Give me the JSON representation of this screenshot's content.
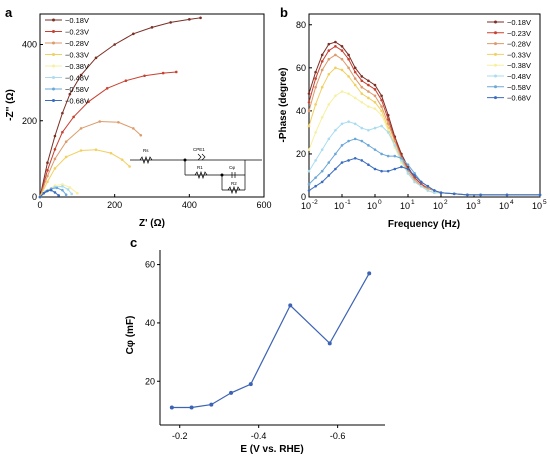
{
  "panel_labels": {
    "a": "a",
    "b": "b",
    "c": "c"
  },
  "colors": [
    "#7a2e24",
    "#c84030",
    "#dd9a6a",
    "#f2d060",
    "#f6f0a0",
    "#aadcf0",
    "#6aa8d8",
    "#3a6cc0",
    "#1a3a7a"
  ],
  "chart_data": [
    {
      "type": "scatter",
      "xlabel": "Z' (Ω)",
      "ylabel": "-Z'' (Ω)",
      "xlim": [
        0,
        600
      ],
      "ylim": [
        0,
        480
      ],
      "xticks": [
        "0",
        "200",
        "400",
        "600"
      ],
      "yticks": [
        "0",
        "200",
        "400"
      ],
      "legend_position": "top-left",
      "series": [
        {
          "name": "−0.18V",
          "x": [
            0,
            20,
            40,
            60,
            80,
            110,
            150,
            200,
            250,
            300,
            350,
            400,
            430
          ],
          "y": [
            0,
            90,
            160,
            220,
            270,
            320,
            365,
            400,
            428,
            445,
            458,
            466,
            470
          ]
        },
        {
          "name": "−0.23V",
          "x": [
            0,
            20,
            40,
            60,
            90,
            130,
            180,
            230,
            280,
            330,
            365
          ],
          "y": [
            0,
            70,
            125,
            170,
            210,
            250,
            285,
            305,
            318,
            325,
            328
          ]
        },
        {
          "name": "−0.28V",
          "x": [
            0,
            20,
            40,
            70,
            110,
            160,
            210,
            250,
            270
          ],
          "y": [
            0,
            55,
            100,
            145,
            180,
            198,
            196,
            180,
            162
          ]
        },
        {
          "name": "−0.33V",
          "x": [
            0,
            20,
            40,
            70,
            110,
            150,
            190,
            220,
            240
          ],
          "y": [
            0,
            40,
            75,
            105,
            122,
            124,
            115,
            98,
            80
          ]
        },
        {
          "name": "−0.38V",
          "x": [
            0,
            20,
            40,
            60,
            80,
            100
          ],
          "y": [
            0,
            18,
            30,
            33,
            25,
            10
          ]
        },
        {
          "name": "−0.48V",
          "x": [
            0,
            20,
            40,
            60,
            75,
            85
          ],
          "y": [
            0,
            16,
            26,
            28,
            20,
            8
          ]
        },
        {
          "name": "−0.58V",
          "x": [
            0,
            15,
            30,
            45,
            60,
            70
          ],
          "y": [
            0,
            14,
            22,
            24,
            18,
            6
          ]
        },
        {
          "name": "−0.68V",
          "x": [
            0,
            10,
            20,
            30,
            40,
            50
          ],
          "y": [
            0,
            10,
            16,
            18,
            12,
            4
          ]
        }
      ],
      "inset_circuit": {
        "labels": [
          "Rs",
          "CPE1",
          "R1",
          "Cφ",
          "R2"
        ]
      }
    },
    {
      "type": "scatter",
      "xlabel": "Frequency (Hz)",
      "ylabel": "-Phase (degree)",
      "xscale": "log",
      "xlim": [
        0.01,
        100000
      ],
      "ylim": [
        0,
        85
      ],
      "xticks_exp": [
        "-2",
        "-1",
        "0",
        "1",
        "2",
        "3",
        "4",
        "5"
      ],
      "yticks": [
        "0",
        "20",
        "40",
        "60",
        "80"
      ],
      "legend_position": "top-right",
      "series": [
        {
          "name": "−0.18V",
          "logx": [
            -2,
            -1.8,
            -1.6,
            -1.4,
            -1.2,
            -1.0,
            -0.8,
            -0.6,
            -0.4,
            -0.2,
            0,
            0.2,
            0.4,
            0.6,
            0.8,
            1.0,
            1.2,
            1.4,
            1.6,
            1.8,
            2.0,
            2.4,
            2.8,
            3.2,
            4,
            5
          ],
          "y": [
            48,
            58,
            66,
            71,
            72,
            70,
            66,
            60,
            56,
            54,
            52,
            47,
            38,
            28,
            20,
            14,
            9,
            6,
            4,
            3,
            2,
            1.5,
            1,
            1,
            1,
            1
          ]
        },
        {
          "name": "−0.23V",
          "logx": [
            -2,
            -1.8,
            -1.6,
            -1.4,
            -1.2,
            -1.0,
            -0.8,
            -0.6,
            -0.4,
            -0.2,
            0,
            0.2,
            0.4,
            0.6,
            0.8,
            1.0,
            1.2,
            1.4,
            1.6,
            1.8,
            2.0,
            2.4,
            2.8,
            3.2,
            4,
            5
          ],
          "y": [
            44,
            55,
            63,
            68,
            70,
            68,
            64,
            58,
            54,
            52,
            50,
            45,
            36,
            27,
            19,
            13,
            9,
            6,
            4,
            3,
            2,
            1.5,
            1,
            1,
            1,
            1
          ]
        },
        {
          "name": "−0.28V",
          "logx": [
            -2,
            -1.8,
            -1.6,
            -1.4,
            -1.2,
            -1.0,
            -0.8,
            -0.6,
            -0.4,
            -0.2,
            0,
            0.2,
            0.4,
            0.6,
            0.8,
            1.0,
            1.2,
            1.4,
            1.6,
            1.8,
            2.0,
            2.4,
            2.8,
            3.2,
            4,
            5
          ],
          "y": [
            40,
            51,
            59,
            64,
            66,
            64,
            60,
            55,
            51,
            49,
            47,
            42,
            34,
            26,
            18,
            12,
            8,
            5,
            4,
            3,
            2,
            1.5,
            1,
            1,
            1,
            1
          ]
        },
        {
          "name": "−0.33V",
          "logx": [
            -2,
            -1.8,
            -1.6,
            -1.4,
            -1.2,
            -1.0,
            -0.8,
            -0.6,
            -0.4,
            -0.2,
            0,
            0.2,
            0.4,
            0.6,
            0.8,
            1.0,
            1.2,
            1.4,
            1.6,
            1.8,
            2.0,
            2.4,
            2.8,
            3.2,
            4,
            5
          ],
          "y": [
            33,
            43,
            51,
            57,
            60,
            59,
            56,
            52,
            48,
            46,
            44,
            40,
            32,
            24,
            17,
            11,
            7,
            5,
            3,
            2,
            2,
            1.5,
            1,
            1,
            1,
            1
          ]
        },
        {
          "name": "−0.38V",
          "logx": [
            -2,
            -1.8,
            -1.6,
            -1.4,
            -1.2,
            -1.0,
            -0.8,
            -0.6,
            -0.4,
            -0.2,
            0,
            0.2,
            0.4,
            0.6,
            0.8,
            1.0,
            1.2,
            1.4,
            1.6,
            1.8,
            2.0,
            2.4,
            2.8,
            3.2,
            4,
            5
          ],
          "y": [
            22,
            30,
            37,
            43,
            47,
            49,
            48,
            46,
            44,
            42,
            41,
            38,
            31,
            23,
            16,
            11,
            7,
            5,
            3,
            2,
            2,
            1.5,
            1,
            1,
            1,
            1
          ]
        },
        {
          "name": "−0.48V",
          "logx": [
            -2,
            -1.8,
            -1.6,
            -1.4,
            -1.2,
            -1.0,
            -0.8,
            -0.6,
            -0.4,
            -0.2,
            0,
            0.2,
            0.4,
            0.6,
            0.8,
            1.0,
            1.2,
            1.4,
            1.6,
            1.8,
            2.0,
            2.4,
            2.8,
            3.2,
            4,
            5
          ],
          "y": [
            12,
            17,
            22,
            27,
            31,
            34,
            35,
            34,
            32,
            31,
            32,
            33,
            30,
            24,
            17,
            11,
            7,
            5,
            3,
            2,
            2,
            1.5,
            1,
            1,
            1,
            1
          ]
        },
        {
          "name": "−0.58V",
          "logx": [
            -2,
            -1.8,
            -1.6,
            -1.4,
            -1.2,
            -1.0,
            -0.8,
            -0.6,
            -0.4,
            -0.2,
            0,
            0.2,
            0.4,
            0.6,
            0.8,
            1.0,
            1.2,
            1.4,
            1.6,
            1.8,
            2.0,
            2.4,
            2.8,
            3.2,
            4,
            5
          ],
          "y": [
            6,
            9,
            12,
            16,
            20,
            24,
            26,
            27,
            26,
            24,
            22,
            20,
            19,
            19,
            18,
            15,
            11,
            7,
            5,
            3,
            2,
            1.5,
            1,
            1,
            1,
            1
          ]
        },
        {
          "name": "−0.68V",
          "logx": [
            -2,
            -1.8,
            -1.6,
            -1.4,
            -1.2,
            -1.0,
            -0.8,
            -0.6,
            -0.4,
            -0.2,
            0,
            0.2,
            0.4,
            0.6,
            0.8,
            1.0,
            1.2,
            1.4,
            1.6,
            1.8,
            2.0,
            2.4,
            2.8,
            3.2,
            4,
            5
          ],
          "y": [
            3,
            5,
            7,
            10,
            13,
            16,
            17,
            18,
            17,
            15,
            13,
            12,
            12,
            13,
            14,
            13,
            10,
            7,
            5,
            3,
            2,
            1.5,
            1,
            1,
            1,
            1
          ]
        }
      ]
    },
    {
      "type": "line",
      "xlabel": "E (V vs. RHE)",
      "ylabel": "Cφ (mF)",
      "xlim": [
        -0.15,
        -0.72
      ],
      "ylim": [
        5,
        65
      ],
      "xticks": [
        "-0.2",
        "-0.4",
        "-0.6"
      ],
      "yticks": [
        "20",
        "40",
        "60"
      ],
      "series": [
        {
          "name": "",
          "x": [
            -0.18,
            -0.23,
            -0.28,
            -0.33,
            -0.38,
            -0.48,
            -0.58,
            -0.68
          ],
          "y": [
            11,
            11,
            12,
            16,
            19,
            46,
            33,
            57
          ],
          "color": "#3c63b5"
        }
      ]
    }
  ]
}
